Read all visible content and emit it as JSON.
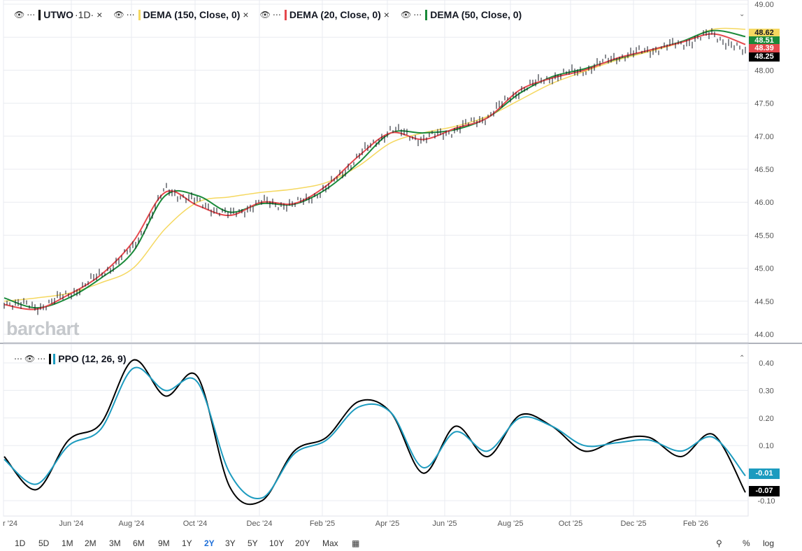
{
  "legend_top": {
    "symbol": "UTWO",
    "interval": "·1D·",
    "studies": [
      {
        "label": "DEMA (150, Close, 0)",
        "color": "#f5d860"
      },
      {
        "label": "DEMA (20, Close, 0)",
        "color": "#e5484d"
      },
      {
        "label": "DEMA (50, Close, 0)",
        "color": "#1a8a3a"
      }
    ]
  },
  "legend_bottom": {
    "label": "PPO (12, 26, 9)",
    "color": "#1c9bbf"
  },
  "brand": "barchart",
  "price_tags": [
    {
      "value": "48.62",
      "bg": "#f5d860",
      "color": "#131722"
    },
    {
      "value": "48.51",
      "bg": "#1a8a3a",
      "color": "#ffffff"
    },
    {
      "value": "48.39",
      "bg": "#e5484d",
      "color": "#ffffff"
    },
    {
      "value": "48.25",
      "bg": "#000000",
      "color": "#ffffff"
    }
  ],
  "ppo_tags": [
    {
      "value": "-0.01",
      "bg": "#1c9bbf",
      "color": "#ffffff"
    },
    {
      "value": "-0.07",
      "bg": "#000000",
      "color": "#ffffff"
    }
  ],
  "timeframes": [
    "1D",
    "5D",
    "1M",
    "2M",
    "3M",
    "6M",
    "9M",
    "1Y",
    "2Y",
    "3Y",
    "5Y",
    "10Y",
    "20Y",
    "Max"
  ],
  "active_timeframe": "2Y",
  "timeframe_right": [
    "%",
    "log"
  ],
  "chart_data": [
    {
      "type": "line",
      "title": "",
      "x_ticks": [
        "r '24",
        "Jun '24",
        "Aug '24",
        "Oct '24",
        "Dec '24",
        "Feb '25",
        "Apr '25",
        "Jun '25",
        "Aug '25",
        "Oct '25",
        "Dec '25",
        "Feb '26"
      ],
      "y_ticks": [
        "49.00",
        "48.50",
        "48.00",
        "47.50",
        "47.00",
        "46.50",
        "46.00",
        "45.50",
        "45.00",
        "44.50",
        "44.00"
      ],
      "ylim": [
        44.0,
        49.0
      ],
      "x": [
        "2024-04",
        "2024-05",
        "2024-06",
        "2024-07",
        "2024-08",
        "2024-09",
        "2024-10",
        "2024-11",
        "2024-12",
        "2025-01",
        "2025-02",
        "2025-03",
        "2025-04",
        "2025-05",
        "2025-06",
        "2025-07",
        "2025-08",
        "2025-09",
        "2025-10",
        "2025-11",
        "2025-12",
        "2026-01",
        "2026-02",
        "2026-03"
      ],
      "series": [
        {
          "name": "UTWO",
          "color": "#131722",
          "values": [
            44.5,
            44.4,
            44.6,
            44.9,
            45.3,
            46.2,
            46.0,
            45.8,
            46.0,
            45.95,
            46.2,
            46.7,
            47.1,
            46.95,
            47.1,
            47.3,
            47.7,
            47.9,
            48.0,
            48.2,
            48.3,
            48.4,
            48.55,
            48.25
          ]
        },
        {
          "name": "DEMA (20, Close, 0)",
          "color": "#e5484d",
          "values": [
            44.45,
            44.38,
            44.6,
            44.9,
            45.4,
            46.15,
            45.95,
            45.8,
            46.0,
            45.98,
            46.25,
            46.7,
            47.05,
            46.95,
            47.12,
            47.28,
            47.7,
            47.88,
            48.0,
            48.18,
            48.3,
            48.42,
            48.55,
            48.39
          ]
        },
        {
          "name": "DEMA (50, Close, 0)",
          "color": "#1a8a3a",
          "values": [
            44.55,
            44.4,
            44.55,
            44.85,
            45.25,
            46.1,
            46.1,
            45.85,
            45.98,
            45.97,
            46.2,
            46.6,
            47.05,
            47.05,
            47.1,
            47.28,
            47.65,
            47.9,
            48.02,
            48.17,
            48.3,
            48.43,
            48.6,
            48.51
          ]
        },
        {
          "name": "DEMA (150, Close, 0)",
          "color": "#f5d860",
          "values": [
            44.5,
            44.55,
            44.62,
            44.78,
            45.0,
            45.6,
            46.0,
            46.08,
            46.15,
            46.2,
            46.3,
            46.55,
            46.9,
            47.05,
            47.15,
            47.3,
            47.55,
            47.8,
            47.98,
            48.15,
            48.28,
            48.42,
            48.62,
            48.62
          ]
        }
      ]
    },
    {
      "type": "line",
      "title": "",
      "y_ticks": [
        "0.40",
        "0.30",
        "0.20",
        "0.10",
        "-0.10"
      ],
      "ylim": [
        -0.13,
        0.46
      ],
      "x": [
        "2024-04",
        "2024-05",
        "2024-06",
        "2024-07",
        "2024-08",
        "2024-09",
        "2024-10",
        "2024-11",
        "2024-12",
        "2025-01",
        "2025-02",
        "2025-03",
        "2025-04",
        "2025-05",
        "2025-06",
        "2025-07",
        "2025-08",
        "2025-09",
        "2025-10",
        "2025-11",
        "2025-12",
        "2026-01",
        "2026-02",
        "2026-03"
      ],
      "series": [
        {
          "name": "PPO",
          "color": "#000000",
          "values": [
            0.06,
            -0.06,
            0.12,
            0.18,
            0.41,
            0.28,
            0.35,
            -0.05,
            -0.1,
            0.08,
            0.13,
            0.26,
            0.22,
            0.0,
            0.17,
            0.06,
            0.21,
            0.17,
            0.08,
            0.12,
            0.13,
            0.06,
            0.14,
            -0.07
          ]
        },
        {
          "name": "Signal",
          "color": "#1c9bbf",
          "values": [
            0.05,
            -0.04,
            0.1,
            0.16,
            0.38,
            0.3,
            0.33,
            0.0,
            -0.09,
            0.07,
            0.12,
            0.24,
            0.22,
            0.02,
            0.15,
            0.08,
            0.2,
            0.17,
            0.1,
            0.11,
            0.12,
            0.08,
            0.13,
            -0.01
          ]
        }
      ]
    }
  ]
}
